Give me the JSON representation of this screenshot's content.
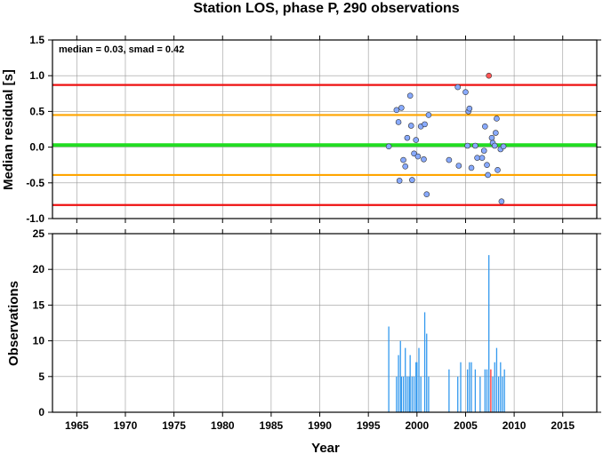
{
  "chart_data": {
    "title": "Station LOS, phase P, 290 observations",
    "xlabel": "Year",
    "x_ticks": [
      1965,
      1970,
      1975,
      1980,
      1985,
      1990,
      1995,
      2000,
      2005,
      2010,
      2015
    ],
    "xlim": [
      1962.5,
      2018.5
    ],
    "grid": true,
    "panels": [
      {
        "type": "scatter",
        "ylabel": "Median residual [s]",
        "ylim": [
          -1.0,
          1.5
        ],
        "y_ticks": [
          "1.5",
          "1.0",
          "0.5",
          "0.0",
          "-0.5",
          "-1.0"
        ],
        "annotation": "median = 0.03, smad = 0.42",
        "reference_lines": [
          {
            "y": 0.87,
            "color": "#ee1111"
          },
          {
            "y": 0.45,
            "color": "#ffa500"
          },
          {
            "y": 0.03,
            "color": "#22dd22"
          },
          {
            "y": -0.39,
            "color": "#ffa500"
          },
          {
            "y": -0.81,
            "color": "#ee1111"
          }
        ],
        "point_color": "#88aaff",
        "outlier_color": "#ff5555",
        "points": [
          {
            "x": 1997.1,
            "y": 0.01
          },
          {
            "x": 1997.9,
            "y": 0.52
          },
          {
            "x": 1998.1,
            "y": 0.35
          },
          {
            "x": 1998.2,
            "y": -0.47
          },
          {
            "x": 1998.4,
            "y": 0.55
          },
          {
            "x": 1998.6,
            "y": -0.18
          },
          {
            "x": 1998.8,
            "y": -0.27
          },
          {
            "x": 1999.0,
            "y": 0.13
          },
          {
            "x": 1999.3,
            "y": 0.72
          },
          {
            "x": 1999.4,
            "y": 0.3
          },
          {
            "x": 1999.5,
            "y": -0.46
          },
          {
            "x": 1999.7,
            "y": -0.09
          },
          {
            "x": 1999.9,
            "y": 0.1
          },
          {
            "x": 2000.1,
            "y": -0.13
          },
          {
            "x": 2000.4,
            "y": 0.29
          },
          {
            "x": 2000.7,
            "y": -0.17
          },
          {
            "x": 2000.8,
            "y": 0.32
          },
          {
            "x": 2001.0,
            "y": -0.66
          },
          {
            "x": 2001.2,
            "y": 0.45
          },
          {
            "x": 2003.3,
            "y": -0.18
          },
          {
            "x": 2004.2,
            "y": 0.84
          },
          {
            "x": 2004.3,
            "y": -0.26
          },
          {
            "x": 2005.0,
            "y": 0.77
          },
          {
            "x": 2005.2,
            "y": 0.02
          },
          {
            "x": 2005.3,
            "y": 0.5
          },
          {
            "x": 2005.4,
            "y": 0.54
          },
          {
            "x": 2005.6,
            "y": -0.29
          },
          {
            "x": 2006.0,
            "y": 0.02
          },
          {
            "x": 2006.2,
            "y": -0.15
          },
          {
            "x": 2006.7,
            "y": -0.15
          },
          {
            "x": 2006.9,
            "y": -0.05
          },
          {
            "x": 2007.0,
            "y": 0.29
          },
          {
            "x": 2007.2,
            "y": -0.25
          },
          {
            "x": 2007.3,
            "y": -0.39
          },
          {
            "x": 2007.4,
            "y": 1.0,
            "outlier": true
          },
          {
            "x": 2007.7,
            "y": 0.13
          },
          {
            "x": 2007.8,
            "y": 0.06
          },
          {
            "x": 2008.0,
            "y": 0.02
          },
          {
            "x": 2008.1,
            "y": 0.2
          },
          {
            "x": 2008.2,
            "y": 0.4
          },
          {
            "x": 2008.3,
            "y": -0.32
          },
          {
            "x": 2008.6,
            "y": -0.03
          },
          {
            "x": 2008.9,
            "y": 0.01
          },
          {
            "x": 2008.7,
            "y": -0.76
          }
        ]
      },
      {
        "type": "bar",
        "ylabel": "Observations",
        "ylim": [
          0,
          25
        ],
        "y_ticks": [
          "0",
          "5",
          "10",
          "15",
          "20",
          "25"
        ],
        "bar_color": "#3399ee",
        "highlight_color": "#ff3333",
        "bars": [
          {
            "x": 1997.1,
            "v": 12
          },
          {
            "x": 1997.9,
            "v": 5
          },
          {
            "x": 1998.1,
            "v": 8
          },
          {
            "x": 1998.3,
            "v": 10
          },
          {
            "x": 1998.4,
            "v": 5
          },
          {
            "x": 1998.6,
            "v": 5
          },
          {
            "x": 1998.8,
            "v": 9
          },
          {
            "x": 1999.0,
            "v": 5
          },
          {
            "x": 1999.2,
            "v": 5
          },
          {
            "x": 1999.3,
            "v": 8
          },
          {
            "x": 1999.5,
            "v": 5
          },
          {
            "x": 1999.7,
            "v": 5
          },
          {
            "x": 1999.9,
            "v": 7
          },
          {
            "x": 2000.0,
            "v": 7
          },
          {
            "x": 2000.2,
            "v": 9
          },
          {
            "x": 2000.4,
            "v": 5
          },
          {
            "x": 2000.8,
            "v": 14
          },
          {
            "x": 2001.0,
            "v": 11
          },
          {
            "x": 2001.2,
            "v": 5
          },
          {
            "x": 2003.3,
            "v": 6
          },
          {
            "x": 2004.2,
            "v": 5
          },
          {
            "x": 2004.5,
            "v": 7
          },
          {
            "x": 2005.2,
            "v": 6
          },
          {
            "x": 2005.4,
            "v": 7
          },
          {
            "x": 2005.6,
            "v": 7
          },
          {
            "x": 2006.0,
            "v": 6
          },
          {
            "x": 2006.5,
            "v": 5
          },
          {
            "x": 2007.0,
            "v": 6
          },
          {
            "x": 2007.2,
            "v": 6
          },
          {
            "x": 2007.4,
            "v": 22
          },
          {
            "x": 2007.6,
            "v": 6,
            "highlight": true
          },
          {
            "x": 2007.8,
            "v": 5
          },
          {
            "x": 2008.0,
            "v": 7
          },
          {
            "x": 2008.2,
            "v": 9
          },
          {
            "x": 2008.4,
            "v": 5
          },
          {
            "x": 2008.6,
            "v": 7
          },
          {
            "x": 2008.8,
            "v": 5
          },
          {
            "x": 2009.0,
            "v": 6
          }
        ]
      }
    ]
  }
}
